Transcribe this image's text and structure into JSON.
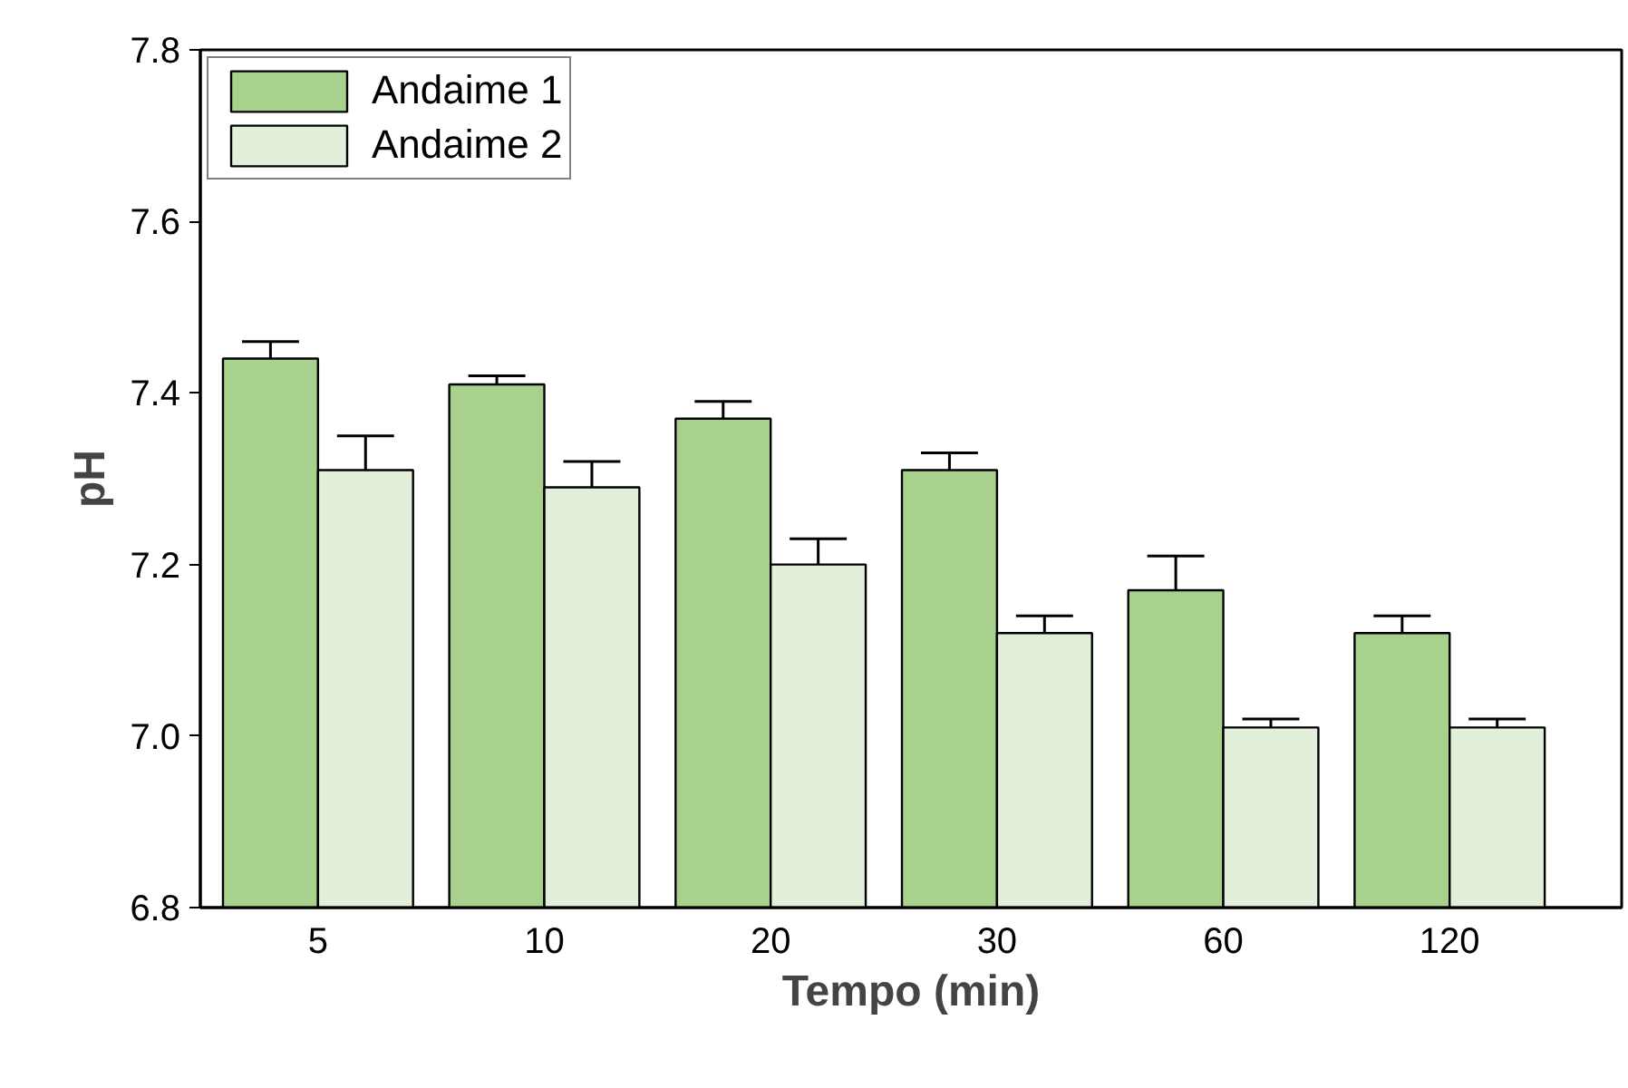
{
  "chart_data": {
    "type": "bar",
    "xlabel": "Tempo (min)",
    "ylabel": "pH",
    "categories": [
      "5",
      "10",
      "20",
      "30",
      "60",
      "120"
    ],
    "series": [
      {
        "name": "Andaime 1",
        "color": "#a9d18e",
        "values": [
          7.44,
          7.41,
          7.37,
          7.31,
          7.17,
          7.12
        ],
        "errors": [
          [
            7.44,
            7.46
          ],
          [
            7.41,
            7.42
          ],
          [
            7.37,
            7.39
          ],
          [
            7.31,
            7.33
          ],
          [
            7.17,
            7.21
          ],
          [
            7.12,
            7.14
          ]
        ]
      },
      {
        "name": "Andaime 2",
        "color": "#e2efda",
        "values": [
          7.31,
          7.29,
          7.2,
          7.12,
          7.01,
          7.01
        ],
        "errors": [
          [
            7.31,
            7.35
          ],
          [
            7.29,
            7.32
          ],
          [
            7.2,
            7.23
          ],
          [
            7.12,
            7.14
          ],
          [
            7.01,
            7.02
          ],
          [
            7.01,
            7.02
          ]
        ]
      }
    ],
    "ylim": [
      6.8,
      7.8
    ],
    "yticks": [
      6.8,
      {
        "value": 7,
        "label": "7.0"
      },
      7.2,
      7.4,
      7.6,
      7.8
    ],
    "grid": false,
    "legend": "top left"
  }
}
